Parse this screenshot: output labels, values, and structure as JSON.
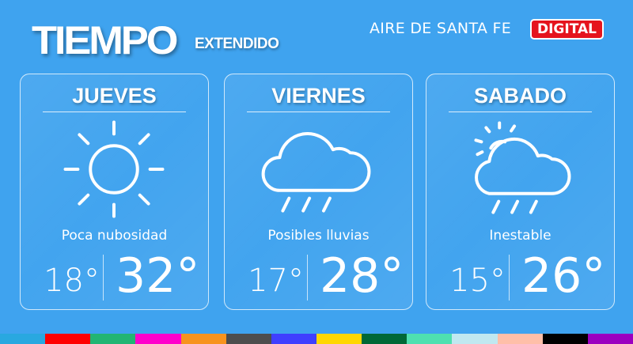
{
  "header": {
    "title": "TIEMPO",
    "subtitle": "EXTENDIDO",
    "brand": "AIRE DE SANTA FE",
    "badge": "DIGITAL"
  },
  "days": [
    {
      "name": "JUEVES",
      "icon": "sun-icon",
      "description": "Poca nubosidad",
      "min": "18°",
      "max": "32°"
    },
    {
      "name": "VIERNES",
      "icon": "rain-cloud-icon",
      "description": "Posibles lluvias",
      "min": "17°",
      "max": "28°"
    },
    {
      "name": "SABADO",
      "icon": "sun-cloud-rain-icon",
      "description": "Inestable",
      "min": "15°",
      "max": "26°"
    }
  ],
  "colors": {
    "background": "#3fa3ef",
    "badge": "#e5141d"
  },
  "color_strip": [
    "#29a8e0",
    "#ff0000",
    "#22b573",
    "#ff00cc",
    "#f7931e",
    "#4d4d4d",
    "#3f3fff",
    "#ffd700",
    "#006837",
    "#4ee0b0",
    "#c0e8f0",
    "#ffbfa8",
    "#000000",
    "#9b00c0"
  ]
}
